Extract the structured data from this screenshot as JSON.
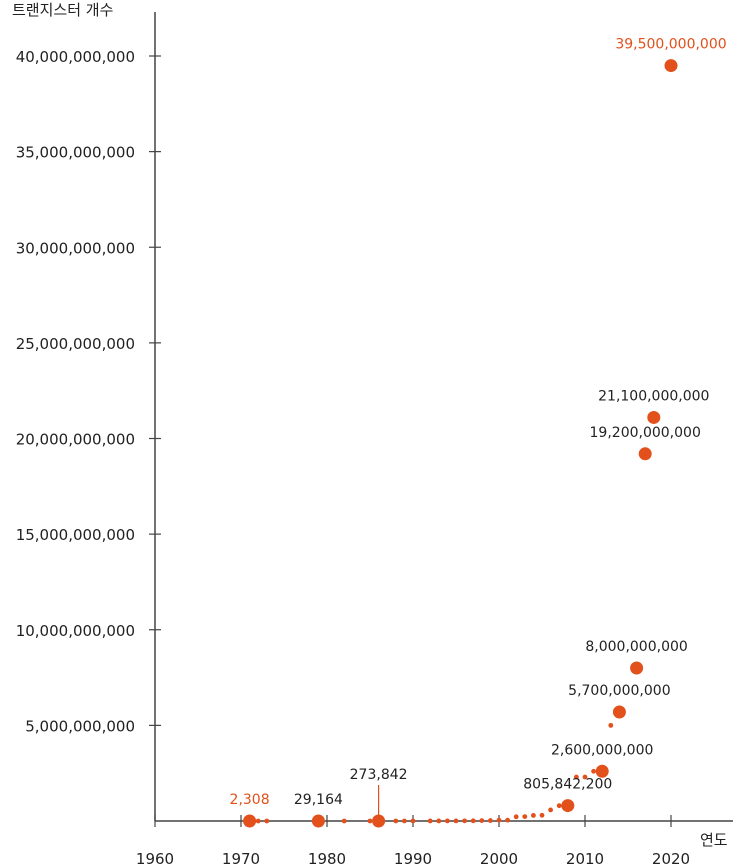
{
  "chart_data": {
    "type": "scatter",
    "title": "",
    "ylabel": "트랜지스터 개수",
    "xlabel": "연도",
    "xlim": [
      1960,
      2026
    ],
    "ylim": [
      0,
      40000000000
    ],
    "x_ticks": [
      1960,
      1970,
      1980,
      1990,
      2000,
      2010,
      2020
    ],
    "x_tick_labels": [
      "1960",
      "1970",
      "1980",
      "1990",
      "2000",
      "2010",
      "2020"
    ],
    "y_ticks": [
      0,
      5000000000,
      10000000000,
      15000000000,
      20000000000,
      25000000000,
      30000000000,
      35000000000,
      40000000000
    ],
    "y_tick_labels": [
      "",
      "5,000,000,000",
      "10,000,000,000",
      "15,000,000,000",
      "20,000,000,000",
      "25,000,000,000",
      "30,000,000,000",
      "35,000,000,000",
      "40,000,000,000"
    ],
    "colors": {
      "marker": "#e2501c",
      "highlight_label": "#e2501c",
      "label": "#222222",
      "axis": "#444444"
    },
    "labeled_points": [
      {
        "year": 1971,
        "value": 2308,
        "label": "2,308",
        "highlight": true
      },
      {
        "year": 1979,
        "value": 29164,
        "label": "29,164",
        "highlight": false
      },
      {
        "year": 1986,
        "value": 273842,
        "label": "273,842",
        "highlight": false,
        "callout": true
      },
      {
        "year": 2008,
        "value": 805842200,
        "label": "805,842,200",
        "highlight": false
      },
      {
        "year": 2012,
        "value": 2600000000,
        "label": "2,600,000,000",
        "highlight": false
      },
      {
        "year": 2014,
        "value": 5700000000,
        "label": "5,700,000,000",
        "highlight": false
      },
      {
        "year": 2016,
        "value": 8000000000,
        "label": "8,000,000,000",
        "highlight": false
      },
      {
        "year": 2017,
        "value": 19200000000,
        "label": "19,200,000,000",
        "highlight": false
      },
      {
        "year": 2018,
        "value": 21100000000,
        "label": "21,100,000,000",
        "highlight": false
      },
      {
        "year": 2020,
        "value": 39500000000,
        "label": "39,500,000,000",
        "highlight": true
      }
    ],
    "minor_points": [
      {
        "year": 1972,
        "value": 3500
      },
      {
        "year": 1973,
        "value": 5000
      },
      {
        "year": 1982,
        "value": 134000
      },
      {
        "year": 1985,
        "value": 275000
      },
      {
        "year": 1988,
        "value": 1180000
      },
      {
        "year": 1989,
        "value": 1200000
      },
      {
        "year": 1990,
        "value": 1200000
      },
      {
        "year": 1992,
        "value": 3100000
      },
      {
        "year": 1993,
        "value": 3100000
      },
      {
        "year": 1994,
        "value": 5500000
      },
      {
        "year": 1995,
        "value": 5500000
      },
      {
        "year": 1996,
        "value": 7500000
      },
      {
        "year": 1997,
        "value": 9500000
      },
      {
        "year": 1998,
        "value": 21000000
      },
      {
        "year": 1999,
        "value": 22000000
      },
      {
        "year": 2000,
        "value": 42000000
      },
      {
        "year": 2001,
        "value": 45000000
      },
      {
        "year": 2002,
        "value": 220000000
      },
      {
        "year": 2003,
        "value": 230000000
      },
      {
        "year": 2004,
        "value": 290000000
      },
      {
        "year": 2005,
        "value": 300000000
      },
      {
        "year": 2006,
        "value": 580000000
      },
      {
        "year": 2007,
        "value": 800000000
      },
      {
        "year": 2009,
        "value": 2300000000
      },
      {
        "year": 2010,
        "value": 2300000000
      },
      {
        "year": 2011,
        "value": 2600000000
      },
      {
        "year": 2013,
        "value": 5000000000
      }
    ]
  }
}
